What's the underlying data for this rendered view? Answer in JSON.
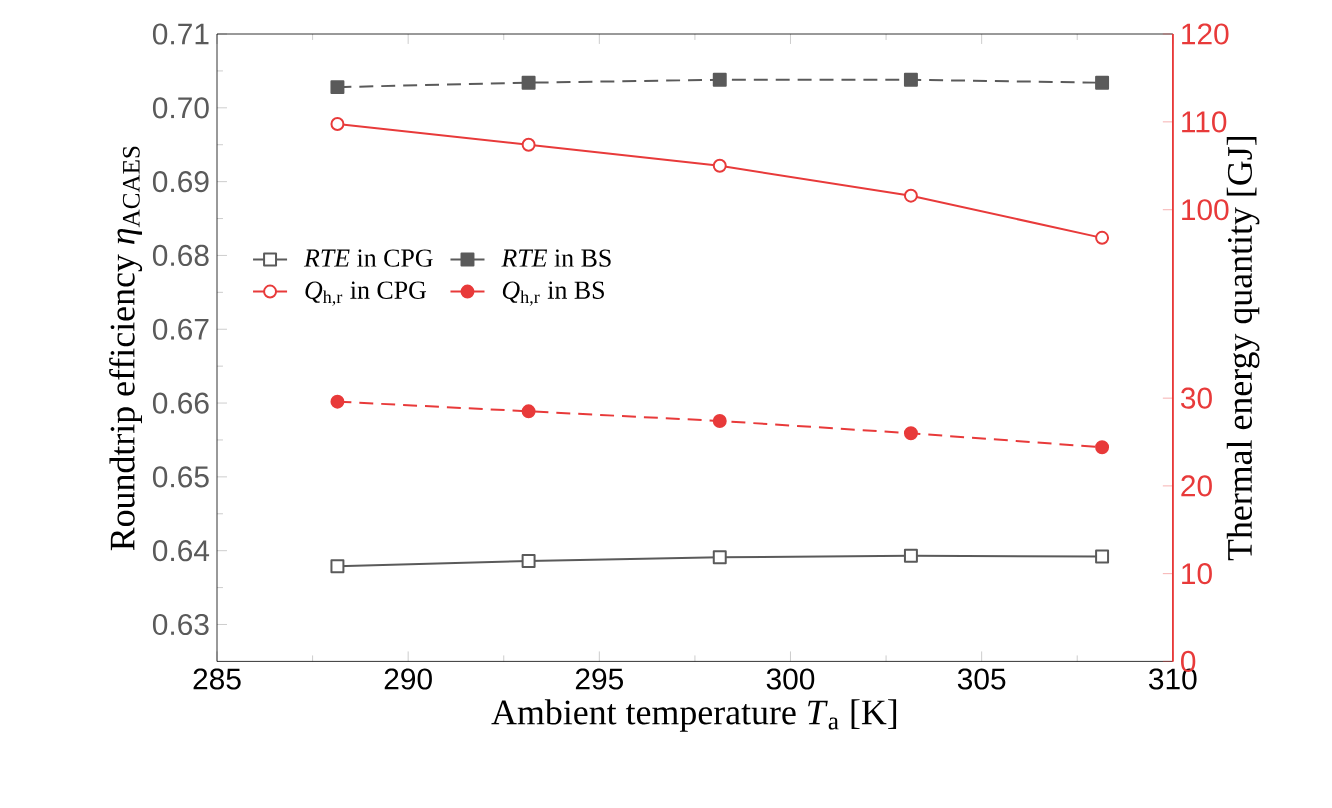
{
  "chart_data": {
    "type": "line",
    "xlabel": "Ambient temperature *T*$_{a}$ [K]",
    "ylabel": "Roundtrip efficiency *η*$_{ACAES}$",
    "y2label": "Thermal energy quantity [GJ]",
    "x": [
      288.15,
      293.15,
      298.15,
      303.15,
      308.15
    ],
    "xlim": [
      285,
      310
    ],
    "xticks": [
      285,
      290,
      295,
      300,
      305,
      310
    ],
    "ylim": [
      0.625,
      0.71
    ],
    "yticks": [
      0.63,
      0.64,
      0.65,
      0.66,
      0.67,
      0.68,
      0.69,
      {
        "value": 0.7,
        "label": "0.70"
      },
      0.71
    ],
    "y2lim": [
      0,
      71.5
    ],
    "y2ticks": [
      0,
      10,
      20,
      30
    ],
    "y3lim": [
      48.6,
      120
    ],
    "y3ticks": [
      100,
      110,
      120
    ],
    "legend": "left",
    "series": [
      {
        "name": "*RTE* in CPG",
        "color": "#5a5a5a",
        "marker": "square",
        "line_style": "solid",
        "values": [
          0.6379,
          0.6386,
          0.6391,
          0.6393,
          0.6392
        ]
      },
      {
        "name": "*RTE* in BS",
        "color": "#5a5a5a",
        "marker": "square",
        "line_style": "dashed",
        "values": [
          0.7028,
          0.7034,
          0.7038,
          0.7038,
          0.7034
        ]
      },
      {
        "name": "*Q*$_{h,r}$ in CPG",
        "color": "#e83a3a",
        "marker": "circle",
        "line_style": "solid",
        "axis": "y3",
        "values": [
          109.75,
          107.4,
          105.0,
          101.6,
          96.8
        ]
      },
      {
        "name": "*Q*$_{h,r}$ in BS",
        "color": "#e83a3a",
        "marker": "circle",
        "line_style": "dashed",
        "axis": "y2",
        "values": [
          29.6,
          28.5,
          27.4,
          26.0,
          24.4
        ]
      }
    ]
  }
}
